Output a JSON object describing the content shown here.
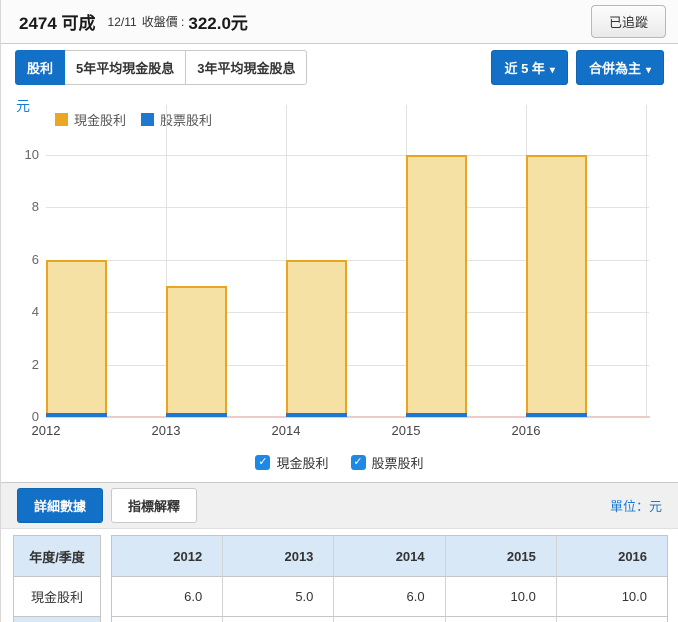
{
  "header": {
    "stock": "2474 可成",
    "date": "12/11",
    "price_label": "收盤價 :",
    "price": "322.0元",
    "track_button": "已追蹤"
  },
  "tabs": {
    "items": [
      {
        "label": "股利",
        "active": true
      },
      {
        "label": "5年平均現金股息",
        "active": false
      },
      {
        "label": "3年平均現金股息",
        "active": false
      }
    ],
    "range_dropdown": "近 5 年",
    "mode_dropdown": "合併為主",
    "accent_color": "#1270C7"
  },
  "chart_data": {
    "type": "bar",
    "unit": "元",
    "categories": [
      "2012",
      "2013",
      "2014",
      "2015",
      "2016"
    ],
    "series": [
      {
        "name": "現金股利",
        "color": "#E9A522",
        "fill": "#F5E1A4",
        "values": [
          6,
          5,
          6,
          10,
          10
        ]
      },
      {
        "name": "股票股利",
        "color": "#1E78D2",
        "values": [
          0,
          0,
          0,
          0,
          0
        ]
      }
    ],
    "ylim": [
      0,
      10
    ],
    "yticks": [
      0,
      2,
      4,
      6,
      8,
      10
    ],
    "legend_position": "top-left",
    "grid": true,
    "baseline_color": "#f0c9c9"
  },
  "checkboxes": [
    {
      "label": "現金股利",
      "checked": true
    },
    {
      "label": "股票股利",
      "checked": true
    }
  ],
  "toolbar": {
    "detail_button": "詳細數據",
    "explain_button": "指標解釋",
    "unit_label": "單位：元"
  },
  "table": {
    "corner_header": "年度/季度",
    "columns": [
      "2012",
      "2013",
      "2014",
      "2015",
      "2016"
    ],
    "rows": [
      {
        "label": "現金股利",
        "values": [
          "6.0",
          "5.0",
          "6.0",
          "10.0",
          "10.0"
        ]
      }
    ]
  }
}
